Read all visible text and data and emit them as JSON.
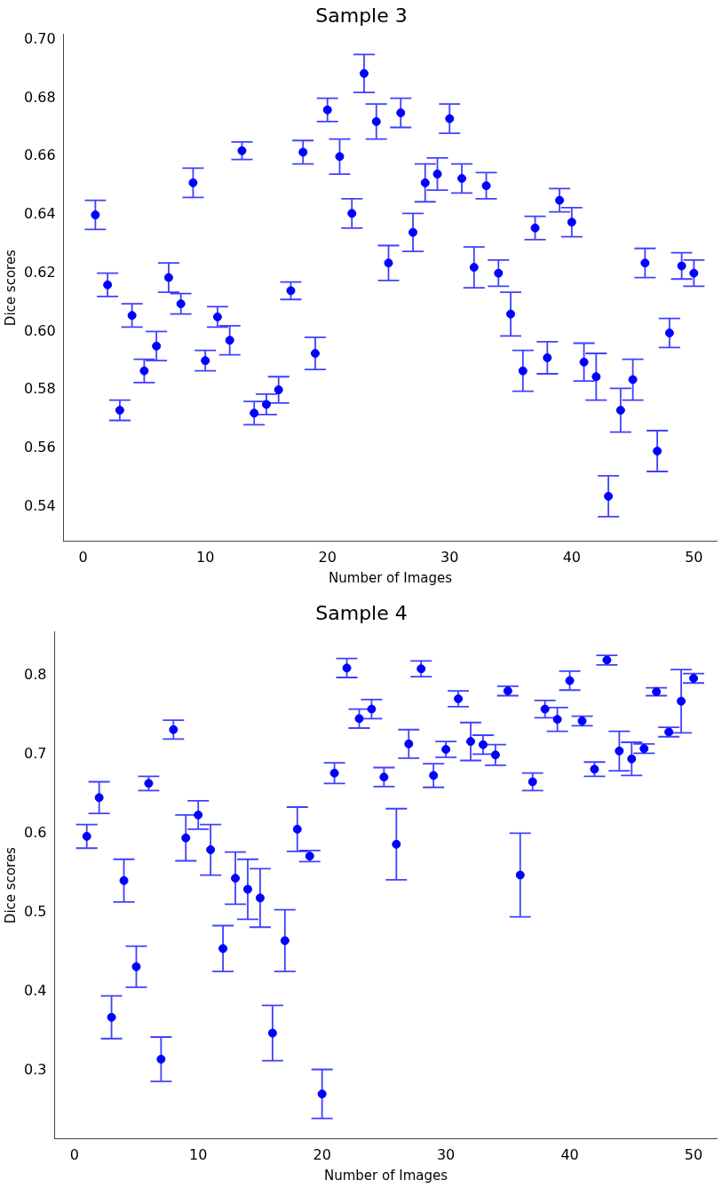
{
  "chart_data": [
    {
      "type": "scatter",
      "title": "Sample 3",
      "xlabel": "Number of Images",
      "ylabel": "Dice scores",
      "color": "#0000ff",
      "marker": "circle",
      "x": [
        1,
        2,
        3,
        4,
        5,
        6,
        7,
        8,
        9,
        10,
        11,
        12,
        13,
        14,
        15,
        16,
        17,
        18,
        19,
        20,
        21,
        22,
        23,
        24,
        25,
        26,
        27,
        28,
        29,
        30,
        31,
        32,
        33,
        34,
        35,
        36,
        37,
        38,
        39,
        40,
        41,
        42,
        43,
        44,
        45,
        46,
        47,
        48,
        49,
        50
      ],
      "values": [
        0.64,
        0.616,
        0.573,
        0.6055,
        0.5865,
        0.595,
        0.6185,
        0.6095,
        0.651,
        0.59,
        0.605,
        0.597,
        0.662,
        0.572,
        0.575,
        0.58,
        0.614,
        0.6615,
        0.5925,
        0.676,
        0.66,
        0.6405,
        0.6885,
        0.672,
        0.6235,
        0.675,
        0.634,
        0.651,
        0.654,
        0.673,
        0.6525,
        0.622,
        0.65,
        0.62,
        0.606,
        0.5865,
        0.6355,
        0.591,
        0.645,
        0.6375,
        0.5895,
        0.5845,
        0.5435,
        0.573,
        0.5835,
        0.6235,
        0.559,
        0.5995,
        0.6225,
        0.62
      ],
      "errors": [
        0.005,
        0.004,
        0.0035,
        0.004,
        0.004,
        0.005,
        0.005,
        0.0035,
        0.005,
        0.0035,
        0.0035,
        0.005,
        0.003,
        0.004,
        0.0035,
        0.0045,
        0.003,
        0.004,
        0.0055,
        0.004,
        0.006,
        0.005,
        0.0065,
        0.006,
        0.006,
        0.005,
        0.0065,
        0.0065,
        0.0055,
        0.005,
        0.005,
        0.007,
        0.0045,
        0.0045,
        0.0075,
        0.007,
        0.004,
        0.0055,
        0.004,
        0.005,
        0.0065,
        0.008,
        0.007,
        0.0075,
        0.007,
        0.005,
        0.007,
        0.005,
        0.0045,
        0.0045
      ],
      "xlim": [
        -1.6,
        51.9
      ],
      "xticks": [
        0,
        10,
        20,
        30,
        40,
        50
      ],
      "ylim": [
        0.528,
        0.702
      ],
      "yticks": [
        0.54,
        0.56,
        0.58,
        {
          "value": 0.6,
          "label": "0.60"
        },
        0.62,
        0.64,
        0.66,
        0.68,
        {
          "value": 0.7,
          "label": "0.70"
        }
      ]
    },
    {
      "type": "scatter",
      "title": "Sample 4",
      "xlabel": "Number of Images",
      "ylabel": "Dice scores",
      "color": "#0000ff",
      "marker": "circle",
      "x": [
        1,
        2,
        3,
        4,
        5,
        6,
        7,
        8,
        9,
        10,
        11,
        12,
        13,
        14,
        15,
        16,
        17,
        18,
        19,
        20,
        21,
        22,
        23,
        24,
        25,
        26,
        27,
        28,
        29,
        30,
        31,
        32,
        33,
        34,
        35,
        36,
        37,
        38,
        39,
        40,
        41,
        42,
        43,
        44,
        45,
        46,
        47,
        48,
        49,
        50
      ],
      "values": [
        0.597,
        0.646,
        0.368,
        0.541,
        0.432,
        0.664,
        0.315,
        0.732,
        0.595,
        0.624,
        0.58,
        0.455,
        0.544,
        0.53,
        0.519,
        0.348,
        0.465,
        0.606,
        0.572,
        0.271,
        0.677,
        0.81,
        0.746,
        0.758,
        0.672,
        0.587,
        0.714,
        0.809,
        0.674,
        0.707,
        0.771,
        0.717,
        0.713,
        0.7,
        0.781,
        0.548,
        0.666,
        0.758,
        0.745,
        0.794,
        0.743,
        0.682,
        0.82,
        0.705,
        0.695,
        0.708,
        0.78,
        0.729,
        0.768,
        0.797
      ],
      "errors": [
        0.015,
        0.02,
        0.027,
        0.027,
        0.026,
        0.009,
        0.028,
        0.012,
        0.029,
        0.018,
        0.032,
        0.029,
        0.033,
        0.038,
        0.037,
        0.035,
        0.039,
        0.028,
        0.007,
        0.031,
        0.013,
        0.012,
        0.012,
        0.012,
        0.012,
        0.045,
        0.018,
        0.01,
        0.015,
        0.01,
        0.01,
        0.024,
        0.012,
        0.013,
        0.006,
        0.053,
        0.011,
        0.011,
        0.015,
        0.012,
        0.006,
        0.009,
        0.006,
        0.025,
        0.021,
        0.006,
        0.005,
        0.006,
        0.04,
        0.006
      ],
      "xlim": [
        -1.6,
        51.9
      ],
      "xticks": [
        0,
        10,
        20,
        30,
        40,
        50
      ],
      "ylim": [
        0.214,
        0.856
      ],
      "yticks": [
        0.3,
        0.4,
        0.5,
        0.6,
        0.7,
        0.8
      ]
    }
  ]
}
